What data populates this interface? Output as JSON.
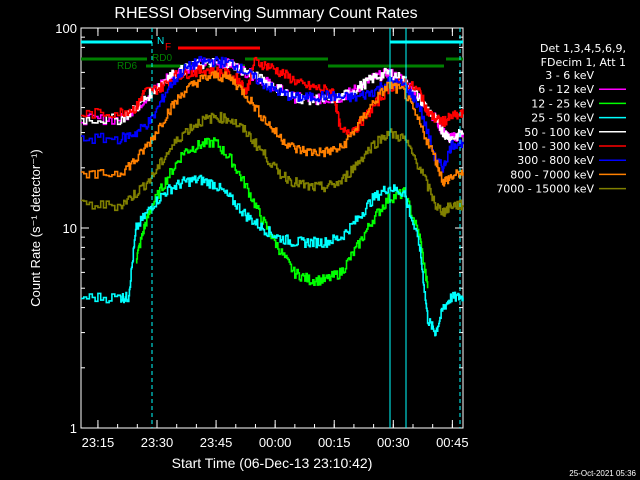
{
  "chart_data": {
    "type": "line",
    "title": "RHESSI Observing Summary Count Rates",
    "xlabel": "Start Time (06-Dec-13 23:10:42)",
    "ylabel": "Count Rate (s⁻¹ detector⁻¹)",
    "yscale": "log",
    "ylim": [
      1,
      100
    ],
    "xlim_min": [
      0,
      97
    ],
    "x_unit": "minutes after 23:10:42",
    "y_ticks": [
      "1",
      "10",
      "100"
    ],
    "x_ticks": [
      {
        "label": "23:15",
        "min": 4.3
      },
      {
        "label": "23:30",
        "min": 19.3
      },
      {
        "label": "23:45",
        "min": 34.3
      },
      {
        "label": "00:00",
        "min": 49.3
      },
      {
        "label": "00:15",
        "min": 64.3
      },
      {
        "label": "00:30",
        "min": 79.3
      },
      {
        "label": "00:45",
        "min": 94.3
      }
    ],
    "legend_header": [
      "Det 1,3,4,5,6,9,",
      "FDecim 1, Att 1"
    ],
    "legend_position": "right",
    "series": [
      {
        "name": "3 - 6 keV",
        "color": "#000000",
        "x": [
          0,
          10,
          14,
          18,
          22,
          26,
          30,
          34,
          38,
          42,
          46,
          50,
          54,
          58,
          62,
          66,
          70,
          74,
          78,
          82,
          86,
          90,
          92,
          94,
          97
        ],
        "y": [
          35,
          35,
          40,
          48,
          57,
          62,
          66,
          67,
          66,
          60,
          55,
          50,
          45,
          44,
          44,
          45,
          50,
          56,
          60,
          55,
          44,
          35,
          30,
          28,
          30
        ]
      },
      {
        "name": "6 - 12 keV",
        "color": "#ff00ff",
        "x": [
          0,
          10,
          14,
          18,
          22,
          26,
          30,
          34,
          38,
          42,
          46,
          50,
          54,
          58,
          62,
          66,
          70,
          74,
          78,
          82,
          86,
          90,
          92,
          94,
          97
        ],
        "y": [
          35,
          35,
          40,
          48,
          57,
          62,
          66,
          67,
          66,
          60,
          55,
          50,
          45,
          44,
          44,
          45,
          50,
          56,
          60,
          55,
          44,
          35,
          30,
          28,
          30
        ]
      },
      {
        "name": "12 - 25 keV",
        "color": "#00ff00",
        "x": [
          14,
          16,
          18,
          22,
          26,
          30,
          34,
          38,
          42,
          46,
          50,
          54,
          58,
          62,
          66,
          70,
          74,
          78,
          82,
          86,
          88
        ],
        "y": [
          7,
          10,
          13,
          18,
          24,
          26,
          27,
          22,
          16,
          11,
          8,
          6,
          5.5,
          5.5,
          6,
          8,
          11,
          14,
          15,
          9,
          5
        ]
      },
      {
        "name": "25 - 50 keV",
        "color": "#00ffff",
        "x": [
          0,
          10,
          12,
          14,
          18,
          22,
          26,
          30,
          34,
          38,
          42,
          46,
          50,
          54,
          58,
          62,
          66,
          70,
          74,
          78,
          82,
          86,
          88,
          90,
          92,
          94,
          97
        ],
        "y": [
          4.5,
          4.5,
          4.5,
          10,
          13,
          15.5,
          17,
          17.5,
          16.5,
          14,
          11.5,
          10,
          9,
          8.5,
          8.5,
          8.5,
          9,
          11,
          14,
          16,
          15,
          8,
          3.5,
          3,
          4,
          4.5,
          4.5
        ]
      },
      {
        "name": "50 - 100 keV",
        "color": "#ffffff",
        "x": [
          0,
          10,
          14,
          18,
          22,
          26,
          30,
          34,
          38,
          42,
          46,
          50,
          54,
          58,
          62,
          66,
          70,
          74,
          78,
          82,
          86,
          90,
          92,
          94,
          97
        ],
        "y": [
          35,
          35,
          40,
          48,
          57,
          62,
          66,
          67,
          66,
          60,
          55,
          50,
          45,
          44,
          44,
          45,
          50,
          56,
          60,
          55,
          44,
          35,
          30,
          28,
          30
        ]
      },
      {
        "name": "100 - 300 keV",
        "color": "#ff0000",
        "x": [
          0,
          10,
          14,
          16,
          20,
          24,
          28,
          32,
          36,
          40,
          42,
          44,
          48,
          52,
          56,
          60,
          64,
          66,
          70,
          74,
          78,
          82,
          86,
          88,
          90,
          92,
          94,
          97
        ],
        "y": [
          37,
          38,
          40,
          48,
          50,
          58,
          60,
          62,
          60,
          55,
          48,
          68,
          64,
          58,
          52,
          50,
          48,
          30,
          32,
          40,
          50,
          54,
          48,
          38,
          35,
          34,
          36,
          37
        ]
      },
      {
        "name": "300 - 800 keV",
        "color": "#0000ff",
        "x": [
          0,
          10,
          14,
          18,
          22,
          26,
          30,
          34,
          38,
          42,
          46,
          50,
          54,
          58,
          62,
          66,
          70,
          74,
          78,
          82,
          86,
          90,
          92,
          94,
          97
        ],
        "y": [
          28,
          28,
          30,
          35,
          50,
          62,
          68,
          68,
          67,
          60,
          53,
          48,
          45,
          45,
          46,
          45,
          45,
          48,
          54,
          52,
          40,
          22,
          20,
          26,
          27
        ]
      },
      {
        "name": "800 - 7000 keV",
        "color": "#ff8000",
        "x": [
          0,
          10,
          14,
          18,
          22,
          26,
          30,
          34,
          38,
          42,
          46,
          50,
          54,
          58,
          62,
          66,
          70,
          74,
          78,
          82,
          86,
          90,
          92,
          94,
          97
        ],
        "y": [
          18,
          19,
          22,
          28,
          38,
          48,
          55,
          58,
          56,
          46,
          36,
          29,
          25,
          24,
          24,
          25,
          32,
          42,
          52,
          48,
          33,
          22,
          17,
          18,
          19
        ]
      },
      {
        "name": "7000 - 15000 keV",
        "color": "#808000",
        "x": [
          0,
          10,
          14,
          18,
          22,
          26,
          30,
          34,
          38,
          42,
          46,
          50,
          54,
          58,
          62,
          66,
          70,
          74,
          78,
          82,
          86,
          90,
          92,
          94,
          97
        ],
        "y": [
          13,
          13,
          15,
          18,
          24,
          30,
          34,
          36,
          35,
          30,
          24,
          19,
          17,
          16,
          16,
          17,
          21,
          26,
          30,
          28,
          20,
          13,
          12,
          13,
          13
        ]
      }
    ],
    "annotations": [
      "N",
      "F",
      "RD0",
      "RD6"
    ],
    "footer_date": "25-Oct-2021 05:36"
  }
}
